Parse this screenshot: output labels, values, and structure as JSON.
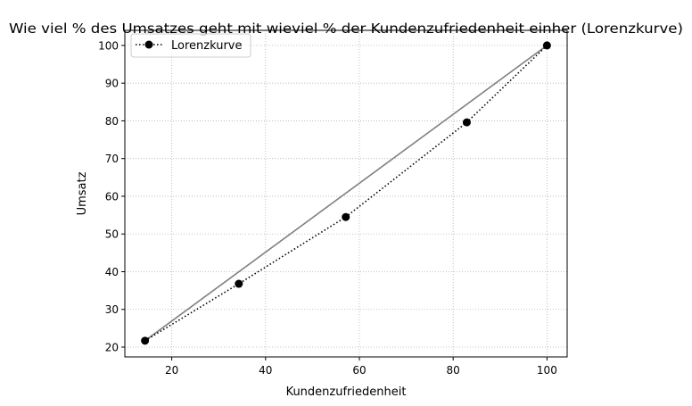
{
  "chart_data": {
    "type": "line",
    "title": "Wie viel % des Umsatzes geht mit wieviel % der Kundenzufriedenheit einher (Lorenzkurve)",
    "xlabel": "Kundenzufriedenheit",
    "ylabel": "Umsatz",
    "xlim": [
      10.0,
      104.3
    ],
    "ylim": [
      17.4,
      104.0
    ],
    "xticks": [
      20,
      40,
      60,
      80,
      100
    ],
    "yticks": [
      20,
      30,
      40,
      50,
      60,
      70,
      80,
      90,
      100
    ],
    "grid": true,
    "legend_position": "top-left",
    "series": [
      {
        "name": "Lorenzkurve",
        "style": "dotted-with-markers",
        "color": "#000000",
        "x": [
          14.3,
          34.3,
          57.1,
          82.9,
          100.0
        ],
        "y": [
          21.7,
          36.8,
          54.5,
          79.6,
          100.0
        ]
      },
      {
        "style": "solid",
        "color": "#808080",
        "x": [
          14.3,
          100.0
        ],
        "y": [
          21.7,
          100.0
        ]
      }
    ]
  }
}
